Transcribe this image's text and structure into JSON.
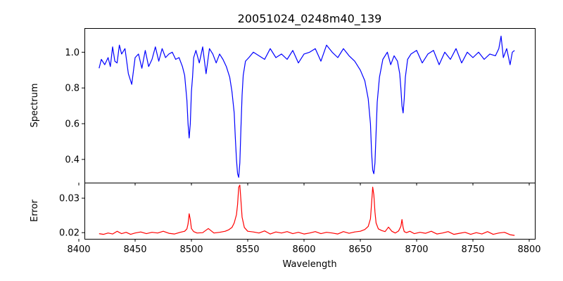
{
  "chart_data": {
    "type": "line",
    "title": "20051024_0248m40_139",
    "xlabel": "Wavelength",
    "xlim": [
      8405,
      8805
    ],
    "x_ticks": [
      "8400",
      "8450",
      "8500",
      "8550",
      "8600",
      "8650",
      "8700",
      "8750",
      "8800"
    ],
    "grid": false,
    "panels": [
      {
        "ylabel": "Spectrum",
        "ylim": [
          0.27,
          1.135
        ],
        "y_ticks": [
          "0.4",
          "0.6",
          "0.8",
          "1.0"
        ],
        "series": [
          {
            "color": "#0000ff",
            "x": [
              8418,
              8420,
              8423,
              8426,
              8428,
              8430,
              8432,
              8434,
              8436,
              8438,
              8441,
              8444,
              8447,
              8450,
              8453,
              8456,
              8459,
              8462,
              8465,
              8468,
              8471,
              8474,
              8477,
              8480,
              8483,
              8486,
              8489,
              8492,
              8494,
              8496,
              8497,
              8498,
              8499,
              8500,
              8501,
              8502,
              8504,
              8507,
              8510,
              8513,
              8516,
              8519,
              8522,
              8525,
              8528,
              8531,
              8534,
              8536,
              8538,
              8539,
              8540,
              8541,
              8542,
              8543,
              8544,
              8545,
              8546,
              8548,
              8551,
              8555,
              8560,
              8565,
              8570,
              8575,
              8580,
              8585,
              8590,
              8595,
              8600,
              8605,
              8610,
              8615,
              8620,
              8625,
              8630,
              8635,
              8640,
              8645,
              8650,
              8654,
              8657,
              8659,
              8660,
              8661,
              8662,
              8663,
              8664,
              8665,
              8667,
              8670,
              8674,
              8677,
              8680,
              8683,
              8685,
              8686,
              8687,
              8688,
              8689,
              8690,
              8692,
              8695,
              8700,
              8705,
              8710,
              8715,
              8720,
              8725,
              8730,
              8735,
              8740,
              8745,
              8750,
              8755,
              8760,
              8765,
              8770,
              8773,
              8775,
              8777,
              8780,
              8783,
              8785,
              8787
            ],
            "y": [
              0.91,
              0.96,
              0.93,
              0.97,
              0.92,
              1.03,
              0.95,
              0.94,
              1.04,
              0.99,
              1.02,
              0.88,
              0.82,
              0.97,
              0.99,
              0.91,
              1.01,
              0.92,
              0.96,
              1.03,
              0.95,
              1.02,
              0.97,
              0.99,
              1.0,
              0.96,
              0.97,
              0.92,
              0.87,
              0.73,
              0.6,
              0.52,
              0.6,
              0.78,
              0.86,
              0.97,
              1.01,
              0.94,
              1.03,
              0.88,
              1.02,
              0.99,
              0.94,
              0.99,
              0.96,
              0.92,
              0.86,
              0.78,
              0.66,
              0.52,
              0.4,
              0.32,
              0.3,
              0.38,
              0.58,
              0.76,
              0.87,
              0.95,
              0.97,
              1.0,
              0.98,
              0.96,
              1.02,
              0.97,
              0.99,
              0.96,
              1.01,
              0.94,
              0.99,
              1.0,
              1.02,
              0.95,
              1.04,
              1.0,
              0.97,
              1.02,
              0.98,
              0.95,
              0.9,
              0.84,
              0.74,
              0.6,
              0.44,
              0.34,
              0.32,
              0.38,
              0.55,
              0.72,
              0.86,
              0.96,
              1.0,
              0.93,
              0.98,
              0.95,
              0.88,
              0.8,
              0.7,
              0.66,
              0.74,
              0.86,
              0.96,
              0.99,
              1.01,
              0.94,
              0.99,
              1.01,
              0.93,
              1.0,
              0.96,
              1.02,
              0.94,
              1.0,
              0.97,
              1.0,
              0.96,
              0.99,
              0.98,
              1.02,
              1.09,
              0.97,
              1.02,
              0.93,
              1.0,
              1.01
            ]
          }
        ]
      },
      {
        "ylabel": "Error",
        "ylim": [
          0.0182,
          0.0345
        ],
        "y_ticks": [
          "0.02",
          "0.03"
        ],
        "series": [
          {
            "color": "#ff0000",
            "x": [
              8418,
              8422,
              8426,
              8430,
              8434,
              8438,
              8442,
              8446,
              8450,
              8455,
              8460,
              8465,
              8470,
              8475,
              8480,
              8485,
              8490,
              8494,
              8496,
              8497,
              8498,
              8499,
              8500,
              8502,
              8505,
              8510,
              8515,
              8520,
              8525,
              8530,
              8533,
              8536,
              8538,
              8540,
              8541,
              8542,
              8543,
              8544,
              8545,
              8547,
              8550,
              8555,
              8560,
              8565,
              8570,
              8575,
              8580,
              8585,
              8590,
              8595,
              8600,
              8605,
              8610,
              8615,
              8620,
              8625,
              8630,
              8635,
              8640,
              8645,
              8650,
              8654,
              8657,
              8659,
              8660,
              8661,
              8662,
              8663,
              8664,
              8666,
              8669,
              8672,
              8675,
              8678,
              8681,
              8684,
              8686,
              8687,
              8688,
              8689,
              8691,
              8694,
              8698,
              8703,
              8708,
              8713,
              8718,
              8723,
              8728,
              8733,
              8738,
              8743,
              8748,
              8753,
              8758,
              8763,
              8768,
              8773,
              8778,
              8783,
              8787
            ],
            "y": [
              0.0197,
              0.0195,
              0.0199,
              0.0196,
              0.0204,
              0.0197,
              0.0201,
              0.0195,
              0.0199,
              0.0202,
              0.0197,
              0.0201,
              0.0199,
              0.0204,
              0.0198,
              0.0196,
              0.0201,
              0.0204,
              0.0211,
              0.0225,
              0.0255,
              0.0238,
              0.0212,
              0.0203,
              0.0199,
              0.02,
              0.0212,
              0.0199,
              0.0201,
              0.0204,
              0.0208,
              0.0215,
              0.0228,
              0.0252,
              0.0282,
              0.0332,
              0.0338,
              0.0292,
              0.0245,
              0.0215,
              0.0204,
              0.0202,
              0.0199,
              0.0205,
              0.0196,
              0.0202,
              0.0199,
              0.0203,
              0.0197,
              0.0201,
              0.0196,
              0.0199,
              0.0203,
              0.0197,
              0.0201,
              0.0199,
              0.0196,
              0.0203,
              0.0198,
              0.0202,
              0.0204,
              0.0209,
              0.0218,
              0.024,
              0.0285,
              0.0332,
              0.031,
              0.026,
              0.0228,
              0.0211,
              0.0206,
              0.0203,
              0.0216,
              0.0204,
              0.0199,
              0.0205,
              0.0218,
              0.0238,
              0.0215,
              0.0203,
              0.02,
              0.0204,
              0.0197,
              0.0201,
              0.0198,
              0.0204,
              0.0196,
              0.0199,
              0.0203,
              0.0195,
              0.0198,
              0.0201,
              0.0195,
              0.02,
              0.0196,
              0.0203,
              0.0195,
              0.0199,
              0.0201,
              0.0194,
              0.0192
            ]
          }
        ]
      }
    ]
  }
}
